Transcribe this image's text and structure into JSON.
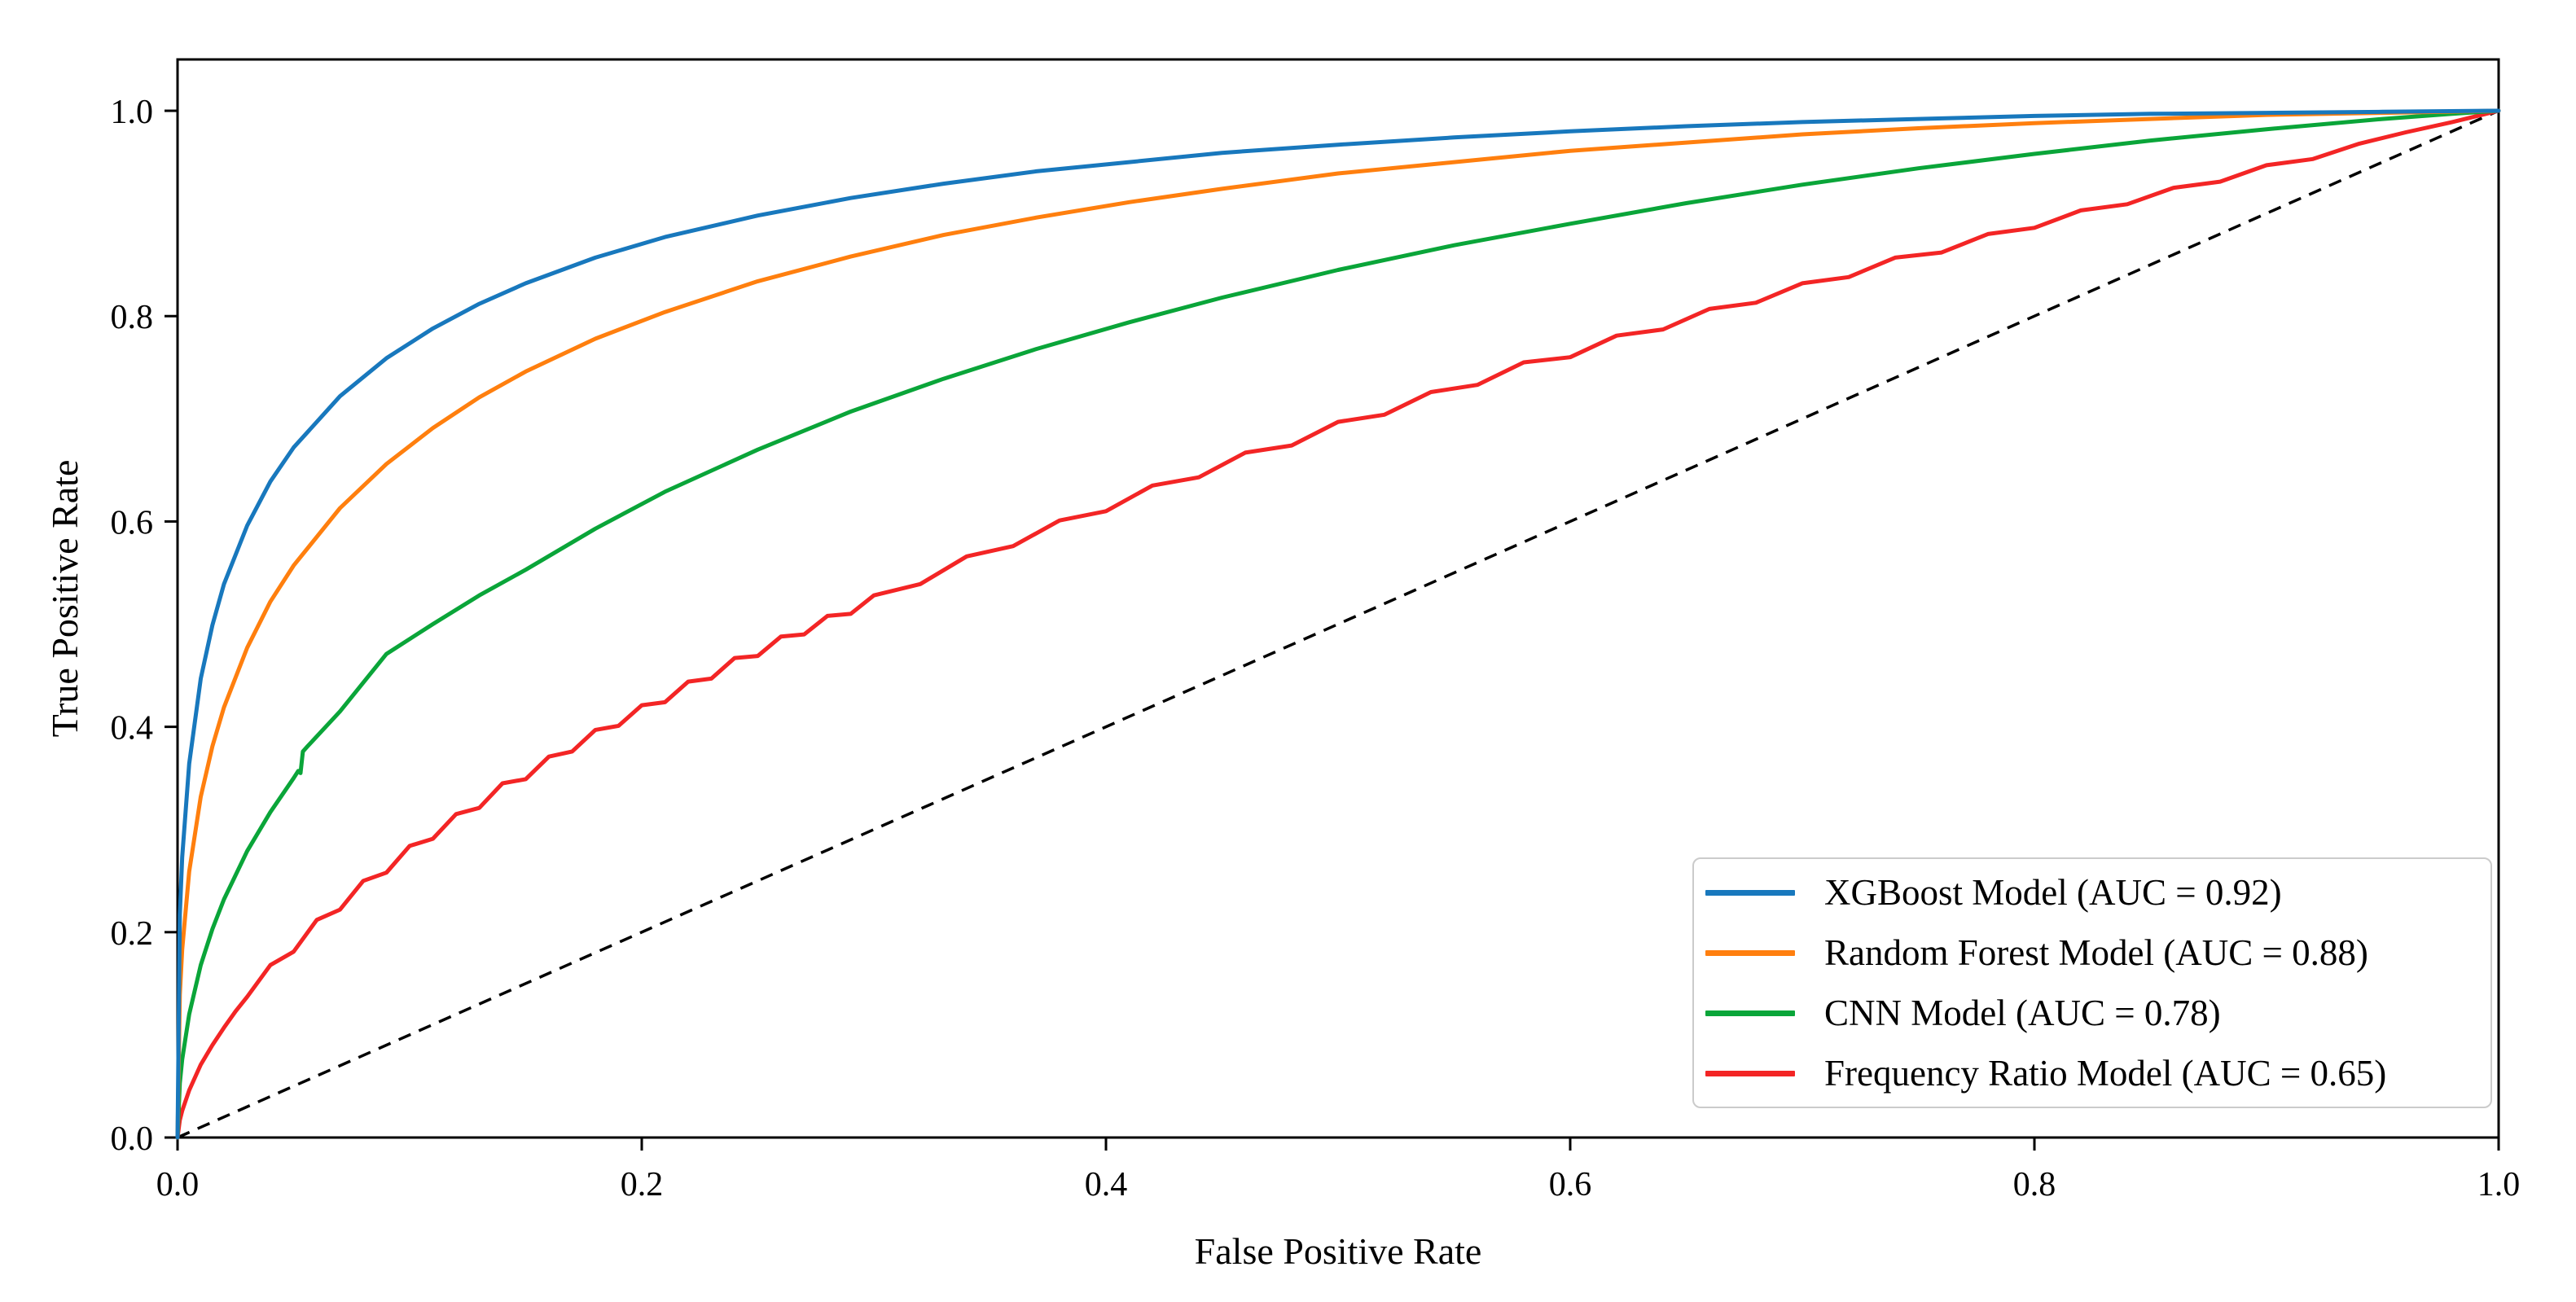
{
  "figure": {
    "background": "#ffffff",
    "axis_color": "#000000",
    "text_color": "#000000"
  },
  "chart_data": {
    "type": "line",
    "subtype": "roc-curves",
    "title": "",
    "xlabel": "False Positive Rate",
    "ylabel": "True Positive Rate",
    "xlim": [
      0.0,
      1.0
    ],
    "ylim": [
      0.0,
      1.05
    ],
    "grid": false,
    "x_ticks": {
      "values": [
        0.0,
        0.2,
        0.4,
        0.6,
        0.8,
        1.0
      ],
      "labels": [
        "0.0",
        "0.2",
        "0.4",
        "0.6",
        "0.8",
        "1.0"
      ]
    },
    "y_ticks": {
      "values": [
        0.0,
        0.2,
        0.4,
        0.6,
        0.8,
        1.0
      ],
      "labels": [
        "0.0",
        "0.2",
        "0.4",
        "0.6",
        "0.8",
        "1.0"
      ]
    },
    "legend_position": "lower right",
    "reference_line": {
      "name": "chance-diagonal",
      "style": "dashed",
      "color": "#000000",
      "points": [
        [
          0,
          0
        ],
        [
          1,
          1
        ]
      ]
    },
    "series": [
      {
        "id": "xgboost",
        "name": "XGBoost Model",
        "auc": 0.92,
        "label": "XGBoost Model (AUC = 0.92)",
        "color": "#1878bd",
        "points": [
          [
            0,
            0
          ],
          [
            0.001,
            0.217
          ],
          [
            0.002,
            0.273
          ],
          [
            0.005,
            0.364
          ],
          [
            0.01,
            0.447
          ],
          [
            0.015,
            0.499
          ],
          [
            0.02,
            0.539
          ],
          [
            0.03,
            0.596
          ],
          [
            0.04,
            0.639
          ],
          [
            0.05,
            0.672
          ],
          [
            0.07,
            0.722
          ],
          [
            0.09,
            0.759
          ],
          [
            0.11,
            0.788
          ],
          [
            0.13,
            0.812
          ],
          [
            0.15,
            0.832
          ],
          [
            0.18,
            0.857
          ],
          [
            0.21,
            0.877
          ],
          [
            0.25,
            0.898
          ],
          [
            0.29,
            0.915
          ],
          [
            0.33,
            0.929
          ],
          [
            0.37,
            0.941
          ],
          [
            0.41,
            0.95
          ],
          [
            0.45,
            0.959
          ],
          [
            0.5,
            0.967
          ],
          [
            0.55,
            0.974
          ],
          [
            0.6,
            0.98
          ],
          [
            0.65,
            0.985
          ],
          [
            0.7,
            0.989
          ],
          [
            0.75,
            0.992
          ],
          [
            0.8,
            0.995
          ],
          [
            0.85,
            0.997
          ],
          [
            0.9,
            0.998
          ],
          [
            0.95,
            0.999
          ],
          [
            1,
            1
          ]
        ]
      },
      {
        "id": "random-forest",
        "name": "Random Forest Model",
        "auc": 0.88,
        "label": "Random Forest Model (AUC = 0.88)",
        "color": "#ff7f0e",
        "points": [
          [
            0,
            0
          ],
          [
            0.001,
            0.139
          ],
          [
            0.002,
            0.183
          ],
          [
            0.005,
            0.259
          ],
          [
            0.01,
            0.332
          ],
          [
            0.015,
            0.381
          ],
          [
            0.02,
            0.419
          ],
          [
            0.03,
            0.477
          ],
          [
            0.04,
            0.522
          ],
          [
            0.05,
            0.557
          ],
          [
            0.07,
            0.613
          ],
          [
            0.09,
            0.656
          ],
          [
            0.11,
            0.691
          ],
          [
            0.13,
            0.721
          ],
          [
            0.15,
            0.746
          ],
          [
            0.18,
            0.778
          ],
          [
            0.21,
            0.804
          ],
          [
            0.25,
            0.834
          ],
          [
            0.29,
            0.858
          ],
          [
            0.33,
            0.879
          ],
          [
            0.37,
            0.896
          ],
          [
            0.41,
            0.911
          ],
          [
            0.45,
            0.924
          ],
          [
            0.5,
            0.939
          ],
          [
            0.55,
            0.95
          ],
          [
            0.6,
            0.961
          ],
          [
            0.65,
            0.969
          ],
          [
            0.7,
            0.977
          ],
          [
            0.75,
            0.983
          ],
          [
            0.8,
            0.988
          ],
          [
            0.85,
            0.992
          ],
          [
            0.9,
            0.996
          ],
          [
            0.95,
            0.998
          ],
          [
            1,
            1
          ]
        ]
      },
      {
        "id": "cnn",
        "name": "CNN Model",
        "auc": 0.78,
        "label": "CNN Model (AUC = 0.78)",
        "color": "#0aa539",
        "points": [
          [
            0,
            0
          ],
          [
            0.001,
            0.053
          ],
          [
            0.002,
            0.076
          ],
          [
            0.005,
            0.12
          ],
          [
            0.01,
            0.168
          ],
          [
            0.015,
            0.203
          ],
          [
            0.02,
            0.232
          ],
          [
            0.03,
            0.279
          ],
          [
            0.04,
            0.317
          ],
          [
            0.05,
            0.35
          ],
          [
            0.052,
            0.357
          ],
          [
            0.053,
            0.355
          ],
          [
            0.054,
            0.376
          ],
          [
            0.056,
            0.381
          ],
          [
            0.07,
            0.415
          ],
          [
            0.09,
            0.471
          ],
          [
            0.11,
            0.5
          ],
          [
            0.13,
            0.528
          ],
          [
            0.15,
            0.553
          ],
          [
            0.18,
            0.593
          ],
          [
            0.21,
            0.629
          ],
          [
            0.25,
            0.67
          ],
          [
            0.29,
            0.707
          ],
          [
            0.33,
            0.739
          ],
          [
            0.37,
            0.768
          ],
          [
            0.41,
            0.794
          ],
          [
            0.45,
            0.818
          ],
          [
            0.5,
            0.845
          ],
          [
            0.55,
            0.869
          ],
          [
            0.6,
            0.89
          ],
          [
            0.65,
            0.91
          ],
          [
            0.7,
            0.928
          ],
          [
            0.75,
            0.944
          ],
          [
            0.8,
            0.958
          ],
          [
            0.85,
            0.971
          ],
          [
            0.9,
            0.982
          ],
          [
            0.95,
            0.992
          ],
          [
            0.98,
            0.997
          ],
          [
            1,
            1
          ]
        ]
      },
      {
        "id": "frequency-ratio",
        "name": "Frequency Ratio Model",
        "auc": 0.65,
        "label": "Frequency Ratio Model (AUC = 0.65)",
        "color": "#f32525",
        "points": [
          [
            0,
            0
          ],
          [
            0.001,
            0.017
          ],
          [
            0.002,
            0.026
          ],
          [
            0.005,
            0.046
          ],
          [
            0.008,
            0.061
          ],
          [
            0.01,
            0.071
          ],
          [
            0.015,
            0.09
          ],
          [
            0.02,
            0.107
          ],
          [
            0.025,
            0.123
          ],
          [
            0.03,
            0.137
          ],
          [
            0.04,
            0.168
          ],
          [
            0.05,
            0.181
          ],
          [
            0.06,
            0.212
          ],
          [
            0.07,
            0.222
          ],
          [
            0.08,
            0.25
          ],
          [
            0.09,
            0.258
          ],
          [
            0.1,
            0.284
          ],
          [
            0.11,
            0.291
          ],
          [
            0.12,
            0.315
          ],
          [
            0.13,
            0.321
          ],
          [
            0.14,
            0.345
          ],
          [
            0.15,
            0.349
          ],
          [
            0.16,
            0.371
          ],
          [
            0.17,
            0.376
          ],
          [
            0.18,
            0.397
          ],
          [
            0.19,
            0.401
          ],
          [
            0.2,
            0.421
          ],
          [
            0.21,
            0.424
          ],
          [
            0.22,
            0.444
          ],
          [
            0.23,
            0.447
          ],
          [
            0.24,
            0.467
          ],
          [
            0.25,
            0.469
          ],
          [
            0.26,
            0.488
          ],
          [
            0.27,
            0.49
          ],
          [
            0.28,
            0.508
          ],
          [
            0.29,
            0.51
          ],
          [
            0.3,
            0.528
          ],
          [
            0.32,
            0.539
          ],
          [
            0.34,
            0.566
          ],
          [
            0.36,
            0.576
          ],
          [
            0.38,
            0.601
          ],
          [
            0.4,
            0.61
          ],
          [
            0.42,
            0.635
          ],
          [
            0.44,
            0.643
          ],
          [
            0.46,
            0.667
          ],
          [
            0.48,
            0.674
          ],
          [
            0.5,
            0.697
          ],
          [
            0.52,
            0.704
          ],
          [
            0.54,
            0.726
          ],
          [
            0.56,
            0.733
          ],
          [
            0.58,
            0.755
          ],
          [
            0.6,
            0.76
          ],
          [
            0.62,
            0.781
          ],
          [
            0.64,
            0.787
          ],
          [
            0.66,
            0.807
          ],
          [
            0.68,
            0.813
          ],
          [
            0.7,
            0.832
          ],
          [
            0.72,
            0.838
          ],
          [
            0.74,
            0.857
          ],
          [
            0.76,
            0.862
          ],
          [
            0.78,
            0.88
          ],
          [
            0.8,
            0.886
          ],
          [
            0.82,
            0.903
          ],
          [
            0.84,
            0.909
          ],
          [
            0.86,
            0.925
          ],
          [
            0.88,
            0.931
          ],
          [
            0.9,
            0.947
          ],
          [
            0.92,
            0.953
          ],
          [
            0.94,
            0.968
          ],
          [
            0.96,
            0.979
          ],
          [
            0.98,
            0.989
          ],
          [
            1,
            1
          ]
        ]
      }
    ]
  }
}
